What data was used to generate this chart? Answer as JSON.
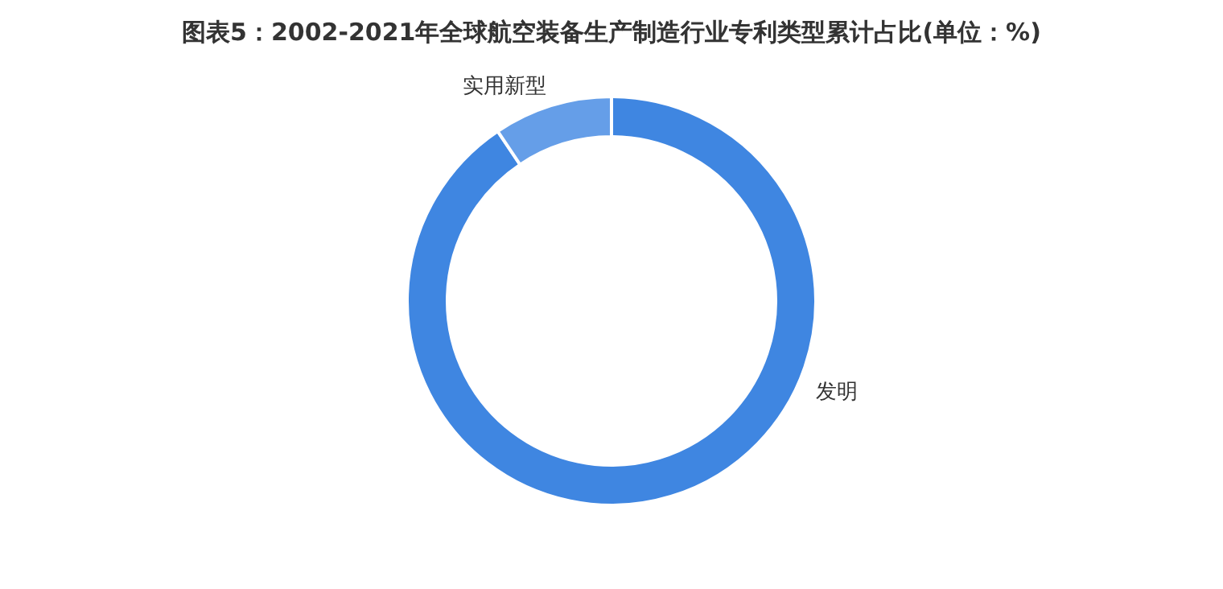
{
  "chart_data": {
    "type": "donut",
    "title": "图表5：2002-2021年全球航空装备生产制造行业专利类型累计占比(单位：%)",
    "categories": [
      "发明",
      "实用新型"
    ],
    "values": [
      90.6,
      9.4
    ],
    "colors": [
      "#3f86e1",
      "#659ee8"
    ]
  }
}
